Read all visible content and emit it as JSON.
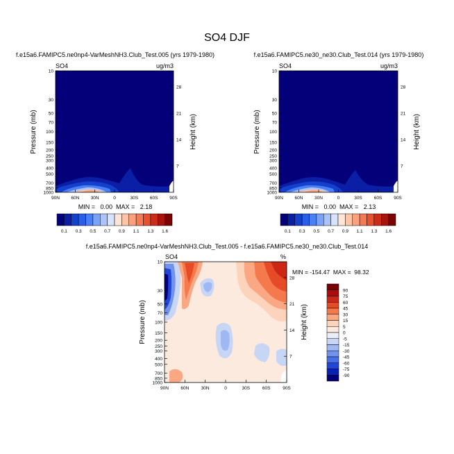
{
  "title": "SO4 DJF",
  "chart_data": [
    {
      "type": "heatmap",
      "panel": "top-left",
      "title": "f.e15a6.FAMIPC5.ne0np4-VarMeshNH3.Club_Test.005 (yrs 1979-1980)",
      "variable": "SO4",
      "units": "ug/m3",
      "ylabel": "Pressure (mb)",
      "ylabel_right": "Height (km)",
      "x_ticks": [
        "90N",
        "60N",
        "30N",
        "0",
        "30S",
        "60S",
        "90S"
      ],
      "y_ticks": [
        "10",
        "30",
        "50",
        "70",
        "100",
        "150",
        "200",
        "250",
        "300",
        "400",
        "500",
        "700",
        "850",
        "1000"
      ],
      "y_right_ticks": [
        "28",
        "21",
        "14",
        "7"
      ],
      "stats": "MIN =   0.00  MAX =   2.18",
      "min": 0.0,
      "max": 2.18,
      "colorbar_ticks": [
        "0.1",
        "0.3",
        "0.5",
        "0.7",
        "0.9",
        "1.1",
        "1.3",
        "1.6"
      ]
    },
    {
      "type": "heatmap",
      "panel": "top-right",
      "title": "f.e15a6.FAMIPC5.ne30_ne30.Club_Test.014 (yrs 1979-1980)",
      "variable": "SO4",
      "units": "ug/m3",
      "ylabel": "Pressure (mb)",
      "ylabel_right": "Height (km)",
      "x_ticks": [
        "90N",
        "60N",
        "30N",
        "0",
        "30S",
        "60S",
        "90S"
      ],
      "y_ticks": [
        "10",
        "30",
        "50",
        "70",
        "100",
        "150",
        "200",
        "250",
        "300",
        "400",
        "500",
        "700",
        "850",
        "1000"
      ],
      "y_right_ticks": [
        "28",
        "21",
        "14",
        "7"
      ],
      "stats": "MIN =   0.00  MAX =   2.13",
      "min": 0.0,
      "max": 2.13,
      "colorbar_ticks": [
        "0.1",
        "0.3",
        "0.5",
        "0.7",
        "0.9",
        "1.1",
        "1.3",
        "1.6"
      ]
    },
    {
      "type": "heatmap",
      "panel": "bottom",
      "title": "f.e15a6.FAMIPC5.ne0np4-VarMeshNH3.Club_Test.005 - f.e15a6.FAMIPC5.ne30_ne30.Club_Test.014",
      "variable": "SO4",
      "units": "%",
      "ylabel": "Pressure (mb)",
      "ylabel_right": "Height (km)",
      "x_ticks": [
        "90N",
        "60N",
        "30N",
        "0",
        "30S",
        "60S",
        "90S"
      ],
      "y_ticks": [
        "10",
        "30",
        "50",
        "70",
        "100",
        "150",
        "200",
        "250",
        "300",
        "400",
        "500",
        "700",
        "850",
        "1000"
      ],
      "y_right_ticks": [
        "28",
        "21",
        "14",
        "7"
      ],
      "stats": "MIN = -154.47  MAX =  98.32",
      "min": -154.47,
      "max": 98.32,
      "colorbar_ticks": [
        "90",
        "75",
        "60",
        "45",
        "30",
        "15",
        "5",
        "0",
        "-5",
        "-15",
        "-30",
        "-45",
        "-60",
        "-75",
        "-90"
      ]
    }
  ],
  "colors": {
    "seq": [
      "#03007a",
      "#0a1fa6",
      "#1540cc",
      "#2a5ee8",
      "#4a80f5",
      "#7aa3f8",
      "#aac4fb",
      "#d7e3fc",
      "#fde6d8",
      "#fcc5a8",
      "#f9a07d",
      "#f47a55",
      "#e8512f",
      "#cc2b17",
      "#a8130b",
      "#7a0403"
    ],
    "diff": [
      "#7a0000",
      "#a80d0d",
      "#cc2615",
      "#e64a26",
      "#f47a4e",
      "#f9a883",
      "#fdd3bb",
      "#fdeadf",
      "#e9eef9",
      "#c8d6f6",
      "#9fb8f3",
      "#7094ee",
      "#4670e8",
      "#2046d9",
      "#0a22b0",
      "#03007a"
    ]
  }
}
